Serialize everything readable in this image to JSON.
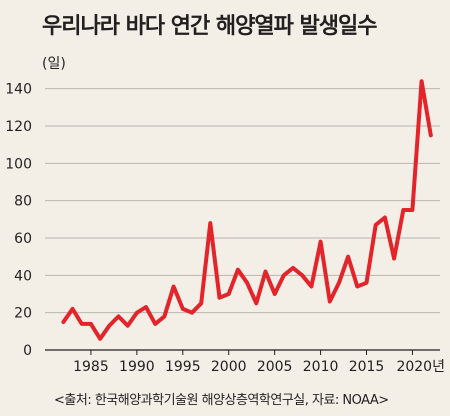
{
  "title": "우리나라 바다 연간 해양열파 발생일수",
  "source": "<출처: 한국해양과학기술원 해양상층역학연구실, 자료: NOAA>",
  "chart_data": {
    "type": "line",
    "title": "우리나라 바다 연간 해양열파 발생일수",
    "ylabel": "(일)",
    "xlabel_suffix": "년",
    "x": [
      1982,
      1983,
      1984,
      1985,
      1986,
      1987,
      1988,
      1989,
      1990,
      1991,
      1992,
      1993,
      1994,
      1995,
      1996,
      1997,
      1998,
      1999,
      2000,
      2001,
      2002,
      2003,
      2004,
      2005,
      2006,
      2007,
      2008,
      2009,
      2010,
      2011,
      2012,
      2013,
      2014,
      2015,
      2016,
      2017,
      2018,
      2019,
      2020,
      2021,
      2022
    ],
    "series": [
      {
        "values": [
          15,
          22,
          14,
          14,
          6,
          13,
          18,
          13,
          20,
          23,
          14,
          18,
          34,
          22,
          20,
          25,
          68,
          28,
          30,
          43,
          36,
          25,
          42,
          30,
          40,
          44,
          40,
          34,
          58,
          26,
          36,
          50,
          34,
          36,
          67,
          71,
          49,
          75,
          75,
          144,
          115
        ]
      }
    ],
    "xlim": [
      1980,
      2023
    ],
    "ylim": [
      0,
      150
    ],
    "xticks": [
      1985,
      1990,
      1995,
      2000,
      2005,
      2010,
      2015,
      2020
    ],
    "xtick_labels": [
      "1985",
      "1990",
      "1995",
      "2000",
      "2005",
      "2010",
      "2015",
      "2020년"
    ],
    "yticks": [
      0,
      20,
      40,
      60,
      80,
      100,
      120,
      140
    ],
    "grid": true,
    "line_color": "#e3242b",
    "grid_color": "#b9b6b0",
    "axis_color": "#231f20"
  }
}
